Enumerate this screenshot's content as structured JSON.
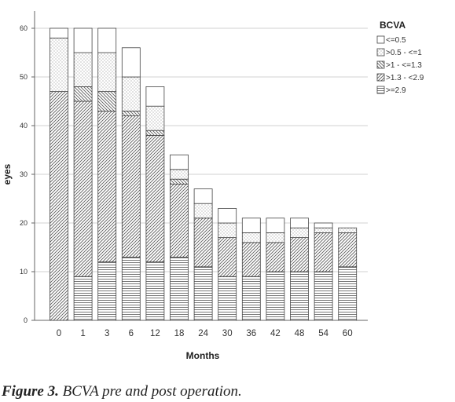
{
  "chart_data": {
    "type": "bar",
    "stacked": true,
    "categories": [
      "0",
      "1",
      "3",
      "6",
      "12",
      "18",
      "24",
      "30",
      "36",
      "42",
      "48",
      "54",
      "60"
    ],
    "xlabel": "Months",
    "ylabel": "eyes",
    "ylim": [
      0,
      60
    ],
    "yticks": [
      "0",
      "10",
      "20",
      "30",
      "40",
      "50",
      "60"
    ],
    "grid": "horizontal",
    "legend": {
      "title": "BCVA",
      "placement": "top-right"
    },
    "series": [
      {
        "name": ">=2.9",
        "pattern": "horizontal-lines",
        "values": [
          0,
          9,
          12,
          13,
          12,
          13,
          11,
          9,
          9,
          10,
          10,
          10,
          11
        ]
      },
      {
        "name": ">1.3 - <2.9",
        "pattern": "diagonal-lines",
        "values": [
          47,
          36,
          31,
          29,
          26,
          15,
          10,
          8,
          7,
          6,
          7,
          8,
          7
        ]
      },
      {
        "name": ">1 - <=1.3",
        "pattern": "back-diagonal-lines",
        "values": [
          0,
          3,
          4,
          1,
          1,
          1,
          0,
          0,
          0,
          0,
          0,
          0,
          0
        ]
      },
      {
        "name": ">0.5 - <=1",
        "pattern": "dots",
        "values": [
          11,
          7,
          8,
          7,
          5,
          2,
          3,
          3,
          2,
          2,
          2,
          1,
          1
        ]
      },
      {
        "name": "<=0.5",
        "pattern": "blank",
        "values": [
          2,
          5,
          5,
          6,
          4,
          3,
          3,
          3,
          3,
          3,
          2,
          1,
          0
        ]
      }
    ],
    "colors": {
      "fill": "#ffffff",
      "stroke": "#444444",
      "grid": "#d0d0d0"
    }
  },
  "caption": {
    "label": "Figure 3.",
    "text": " BCVA pre and post operation."
  }
}
